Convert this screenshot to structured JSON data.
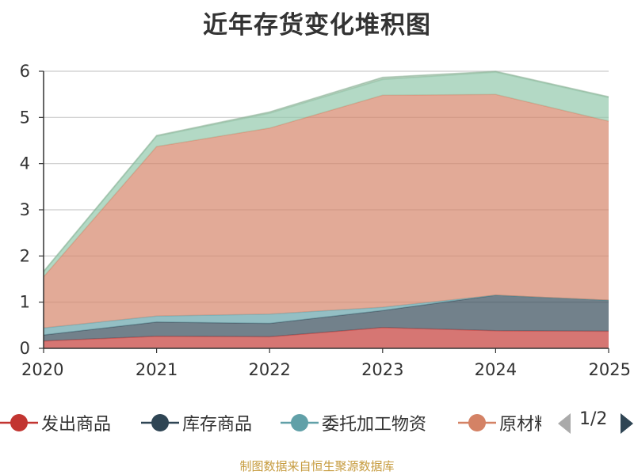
{
  "chart_data": {
    "type": "area",
    "stacked": true,
    "title": "近年存货变化堆积图",
    "ylabel": "",
    "x": [
      "2020",
      "2021",
      "2022",
      "2023",
      "2024",
      "2025"
    ],
    "ylim": [
      0,
      6
    ],
    "yticks": [
      0,
      1,
      2,
      3,
      4,
      5,
      6
    ],
    "grid": true,
    "series": [
      {
        "name": "发出商品",
        "color": "#c23531",
        "values": [
          0.16,
          0.26,
          0.25,
          0.45,
          0.38,
          0.37
        ]
      },
      {
        "name": "库存商品",
        "color": "#2f4554",
        "values": [
          0.13,
          0.31,
          0.29,
          0.37,
          0.77,
          0.67
        ]
      },
      {
        "name": "委托加工物资",
        "color": "#61a0a8",
        "values": [
          0.15,
          0.13,
          0.2,
          0.07,
          0.0,
          0.0
        ]
      },
      {
        "name": "原材料",
        "color": "#d48265",
        "values": [
          1.11,
          3.67,
          4.03,
          4.59,
          4.35,
          3.88
        ]
      },
      {
        "name": "",
        "color": "#8fc7a9",
        "values": [
          0.1,
          0.22,
          0.32,
          0.34,
          0.48,
          0.51
        ]
      },
      {
        "name": "",
        "color": "#8fb59a",
        "values": [
          0.02,
          0.02,
          0.03,
          0.05,
          0.02,
          0.02
        ]
      }
    ]
  },
  "legend": {
    "items": [
      {
        "label": "发出商品",
        "color": "#c23531"
      },
      {
        "label": "库存商品",
        "color": "#2f4554"
      },
      {
        "label": "委托加工物资",
        "color": "#61a0a8"
      },
      {
        "label": "原材料",
        "color": "#d48265"
      }
    ],
    "page": "1/2"
  },
  "footer": {
    "source": "制图数据来自恒生聚源数据库"
  }
}
